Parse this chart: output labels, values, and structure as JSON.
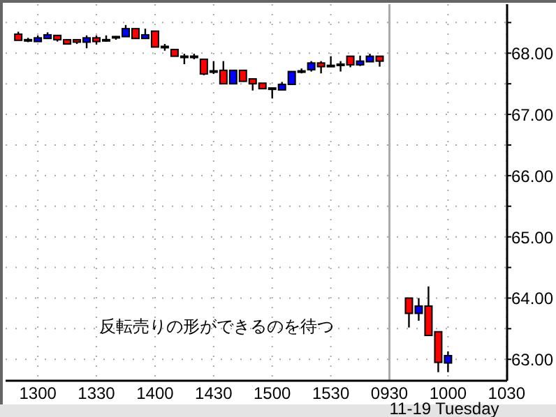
{
  "chart_data": {
    "type": "candlestick",
    "categories": [
      null,
      null,
      "1300",
      null,
      null,
      null,
      null,
      null,
      "1330",
      null,
      null,
      null,
      null,
      null,
      "1400",
      null,
      null,
      null,
      null,
      null,
      "1430",
      null,
      null,
      null,
      null,
      null,
      "1500",
      null,
      null,
      null,
      null,
      null,
      "1530",
      null,
      null,
      null,
      null,
      null,
      "0930",
      null,
      null,
      null,
      null,
      null,
      "1000",
      null,
      null,
      null,
      null,
      null,
      "1030"
    ],
    "ohlc": [
      [
        68.31,
        68.35,
        68.21,
        68.21
      ],
      [
        68.21,
        68.25,
        68.18,
        68.21
      ],
      [
        68.19,
        68.29,
        68.19,
        68.25
      ],
      [
        68.24,
        68.34,
        68.24,
        68.3
      ],
      [
        68.29,
        68.29,
        68.19,
        68.22
      ],
      [
        68.22,
        68.22,
        68.15,
        68.15
      ],
      [
        68.22,
        68.22,
        68.15,
        68.18
      ],
      [
        68.18,
        68.29,
        68.08,
        68.25
      ],
      [
        68.25,
        68.29,
        68.14,
        68.19
      ],
      [
        68.21,
        68.29,
        68.19,
        68.21
      ],
      [
        68.26,
        68.28,
        68.22,
        68.26
      ],
      [
        68.27,
        68.46,
        68.27,
        68.4
      ],
      [
        68.4,
        68.4,
        68.24,
        68.24
      ],
      [
        68.24,
        68.4,
        68.24,
        68.3
      ],
      [
        68.36,
        68.36,
        68.1,
        68.1
      ],
      [
        68.1,
        68.15,
        68.04,
        68.1
      ],
      [
        68.06,
        68.06,
        67.95,
        67.95
      ],
      [
        67.94,
        67.99,
        67.82,
        67.94
      ],
      [
        67.94,
        67.99,
        67.9,
        67.94
      ],
      [
        67.9,
        67.9,
        67.64,
        67.66
      ],
      [
        67.7,
        67.87,
        67.66,
        67.7
      ],
      [
        67.72,
        67.87,
        67.5,
        67.5
      ],
      [
        67.5,
        67.72,
        67.5,
        67.72
      ],
      [
        67.72,
        67.72,
        67.54,
        67.54
      ],
      [
        67.58,
        67.58,
        67.39,
        67.5
      ],
      [
        67.51,
        67.51,
        67.42,
        67.42
      ],
      [
        67.42,
        67.42,
        67.26,
        67.42
      ],
      [
        67.4,
        67.53,
        67.4,
        67.49
      ],
      [
        67.49,
        67.7,
        67.49,
        67.7
      ],
      [
        67.7,
        67.75,
        67.67,
        67.7
      ],
      [
        67.73,
        67.87,
        67.7,
        67.84
      ],
      [
        67.84,
        67.87,
        67.67,
        67.78
      ],
      [
        67.79,
        67.95,
        67.79,
        67.79
      ],
      [
        67.81,
        67.87,
        67.7,
        67.81
      ],
      [
        67.95,
        67.95,
        67.77,
        67.81
      ],
      [
        67.81,
        67.96,
        67.79,
        67.87
      ],
      [
        67.86,
        67.99,
        67.86,
        67.95
      ],
      [
        67.95,
        67.95,
        67.78,
        67.87
      ],
      null,
      null,
      [
        64.0,
        64.0,
        63.52,
        63.75
      ],
      [
        63.75,
        64.0,
        63.63,
        63.87
      ],
      [
        63.87,
        64.19,
        63.39,
        63.39
      ],
      [
        63.45,
        63.45,
        62.79,
        62.95
      ],
      [
        62.94,
        63.13,
        62.79,
        63.06
      ],
      null,
      null,
      null,
      null,
      null,
      null
    ],
    "colors": [
      "#ff0000",
      "#000000",
      "#0000ff",
      "#0000ff",
      "#ff0000",
      "#ff0000",
      "#ff0000",
      "#0000ff",
      "#ff0000",
      "#000000",
      "#000000",
      "#0000ff",
      "#ff0000",
      "#0000ff",
      "#ff0000",
      "#000000",
      "#ff0000",
      "#000000",
      "#000000",
      "#ff0000",
      "#000000",
      "#ff0000",
      "#0000ff",
      "#ff0000",
      "#ff0000",
      "#ff0000",
      "#000000",
      "#0000ff",
      "#0000ff",
      "#000000",
      "#0000ff",
      "#ff0000",
      "#000000",
      "#000000",
      "#ff0000",
      "#0000ff",
      "#0000ff",
      "#ff0000",
      null,
      null,
      "#ff0000",
      "#0000ff",
      "#ff0000",
      "#ff0000",
      "#0000ff",
      null,
      null,
      null,
      null,
      null,
      null
    ],
    "ylim": [
      62.65,
      68.8
    ],
    "yticks": [
      {
        "value": 63,
        "label": "63.00"
      },
      {
        "value": 63.5,
        "label": null
      },
      {
        "value": 64,
        "label": "64.00"
      },
      {
        "value": 64.5,
        "label": null
      },
      {
        "value": 65,
        "label": "65.00"
      },
      {
        "value": 65.5,
        "label": null
      },
      {
        "value": 66,
        "label": "66.00"
      },
      {
        "value": 66.5,
        "label": null
      },
      {
        "value": 67,
        "label": "67.00"
      },
      {
        "value": 67.5,
        "label": null
      },
      {
        "value": 68,
        "label": "68.00"
      },
      {
        "value": 68.5,
        "label": null
      }
    ],
    "grid": true,
    "ref_lines": [
      {
        "axis": "x",
        "value": "0930",
        "color": "#aaaaaa"
      }
    ],
    "annotations": [
      "反転売りの形ができるのを待つ",
      "11-19 Tuesday"
    ]
  }
}
